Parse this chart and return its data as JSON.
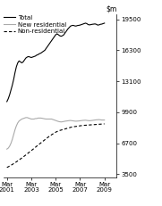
{
  "yticks": [
    3500,
    6700,
    9900,
    13100,
    16300,
    19500
  ],
  "ylim": [
    3200,
    20000
  ],
  "xtick_labels": [
    "Mar\n2001",
    "Mar\n2003",
    "Mar\n2005",
    "Mar\n2007",
    "Mar\n2009"
  ],
  "xtick_positions": [
    0,
    2,
    4,
    6,
    8
  ],
  "xlim": [
    -0.3,
    9.0
  ],
  "legend": [
    "Total",
    "New residential",
    "Non-residential"
  ],
  "background_color": "#ffffff",
  "total": [
    11000,
    11300,
    11700,
    12200,
    12700,
    13300,
    14000,
    14600,
    15000,
    15200,
    15100,
    15000,
    15100,
    15300,
    15500,
    15600,
    15650,
    15600,
    15550,
    15600,
    15650,
    15700,
    15800,
    15850,
    15950,
    16000,
    16100,
    16200,
    16300,
    16500,
    16700,
    16900,
    17100,
    17300,
    17500,
    17700,
    17900,
    18000,
    17900,
    17800,
    17750,
    17800,
    17900,
    18100,
    18300,
    18500,
    18650,
    18800,
    18850,
    18870,
    18820,
    18800,
    18850,
    18870,
    18900,
    18950,
    19000,
    19050,
    19100,
    19050,
    18950,
    18920,
    18950,
    18980,
    19000,
    19020,
    18980,
    18900,
    18920,
    18980,
    19000,
    19050,
    19100
  ],
  "new_residential": [
    6100,
    6200,
    6400,
    6700,
    7100,
    7600,
    8100,
    8500,
    8800,
    9000,
    9100,
    9200,
    9250,
    9300,
    9350,
    9350,
    9300,
    9250,
    9200,
    9200,
    9200,
    9250,
    9250,
    9300,
    9300,
    9300,
    9280,
    9250,
    9220,
    9200,
    9200,
    9200,
    9200,
    9200,
    9150,
    9100,
    9050,
    9000,
    8950,
    8920,
    8900,
    8920,
    8950,
    8980,
    9000,
    9020,
    9040,
    9050,
    9030,
    9010,
    8990,
    8980,
    8990,
    9000,
    9020,
    9040,
    9060,
    9070,
    9080,
    9060,
    9040,
    9030,
    9040,
    9060,
    9080,
    9100,
    9120,
    9130,
    9140,
    9120,
    9100,
    9100,
    9100
  ],
  "non_residential": [
    4200,
    4270,
    4350,
    4430,
    4510,
    4600,
    4690,
    4780,
    4880,
    4980,
    5080,
    5180,
    5280,
    5390,
    5500,
    5610,
    5720,
    5830,
    5940,
    6050,
    6160,
    6280,
    6400,
    6510,
    6620,
    6730,
    6840,
    6950,
    7060,
    7170,
    7280,
    7390,
    7490,
    7580,
    7670,
    7760,
    7840,
    7910,
    7970,
    8020,
    8060,
    8100,
    8140,
    8180,
    8220,
    8260,
    8300,
    8340,
    8380,
    8400,
    8420,
    8440,
    8460,
    8480,
    8500,
    8520,
    8540,
    8550,
    8560,
    8570,
    8580,
    8590,
    8600,
    8610,
    8620,
    8630,
    8640,
    8650,
    8660,
    8670,
    8680,
    8690,
    8700
  ],
  "n_points": 73
}
